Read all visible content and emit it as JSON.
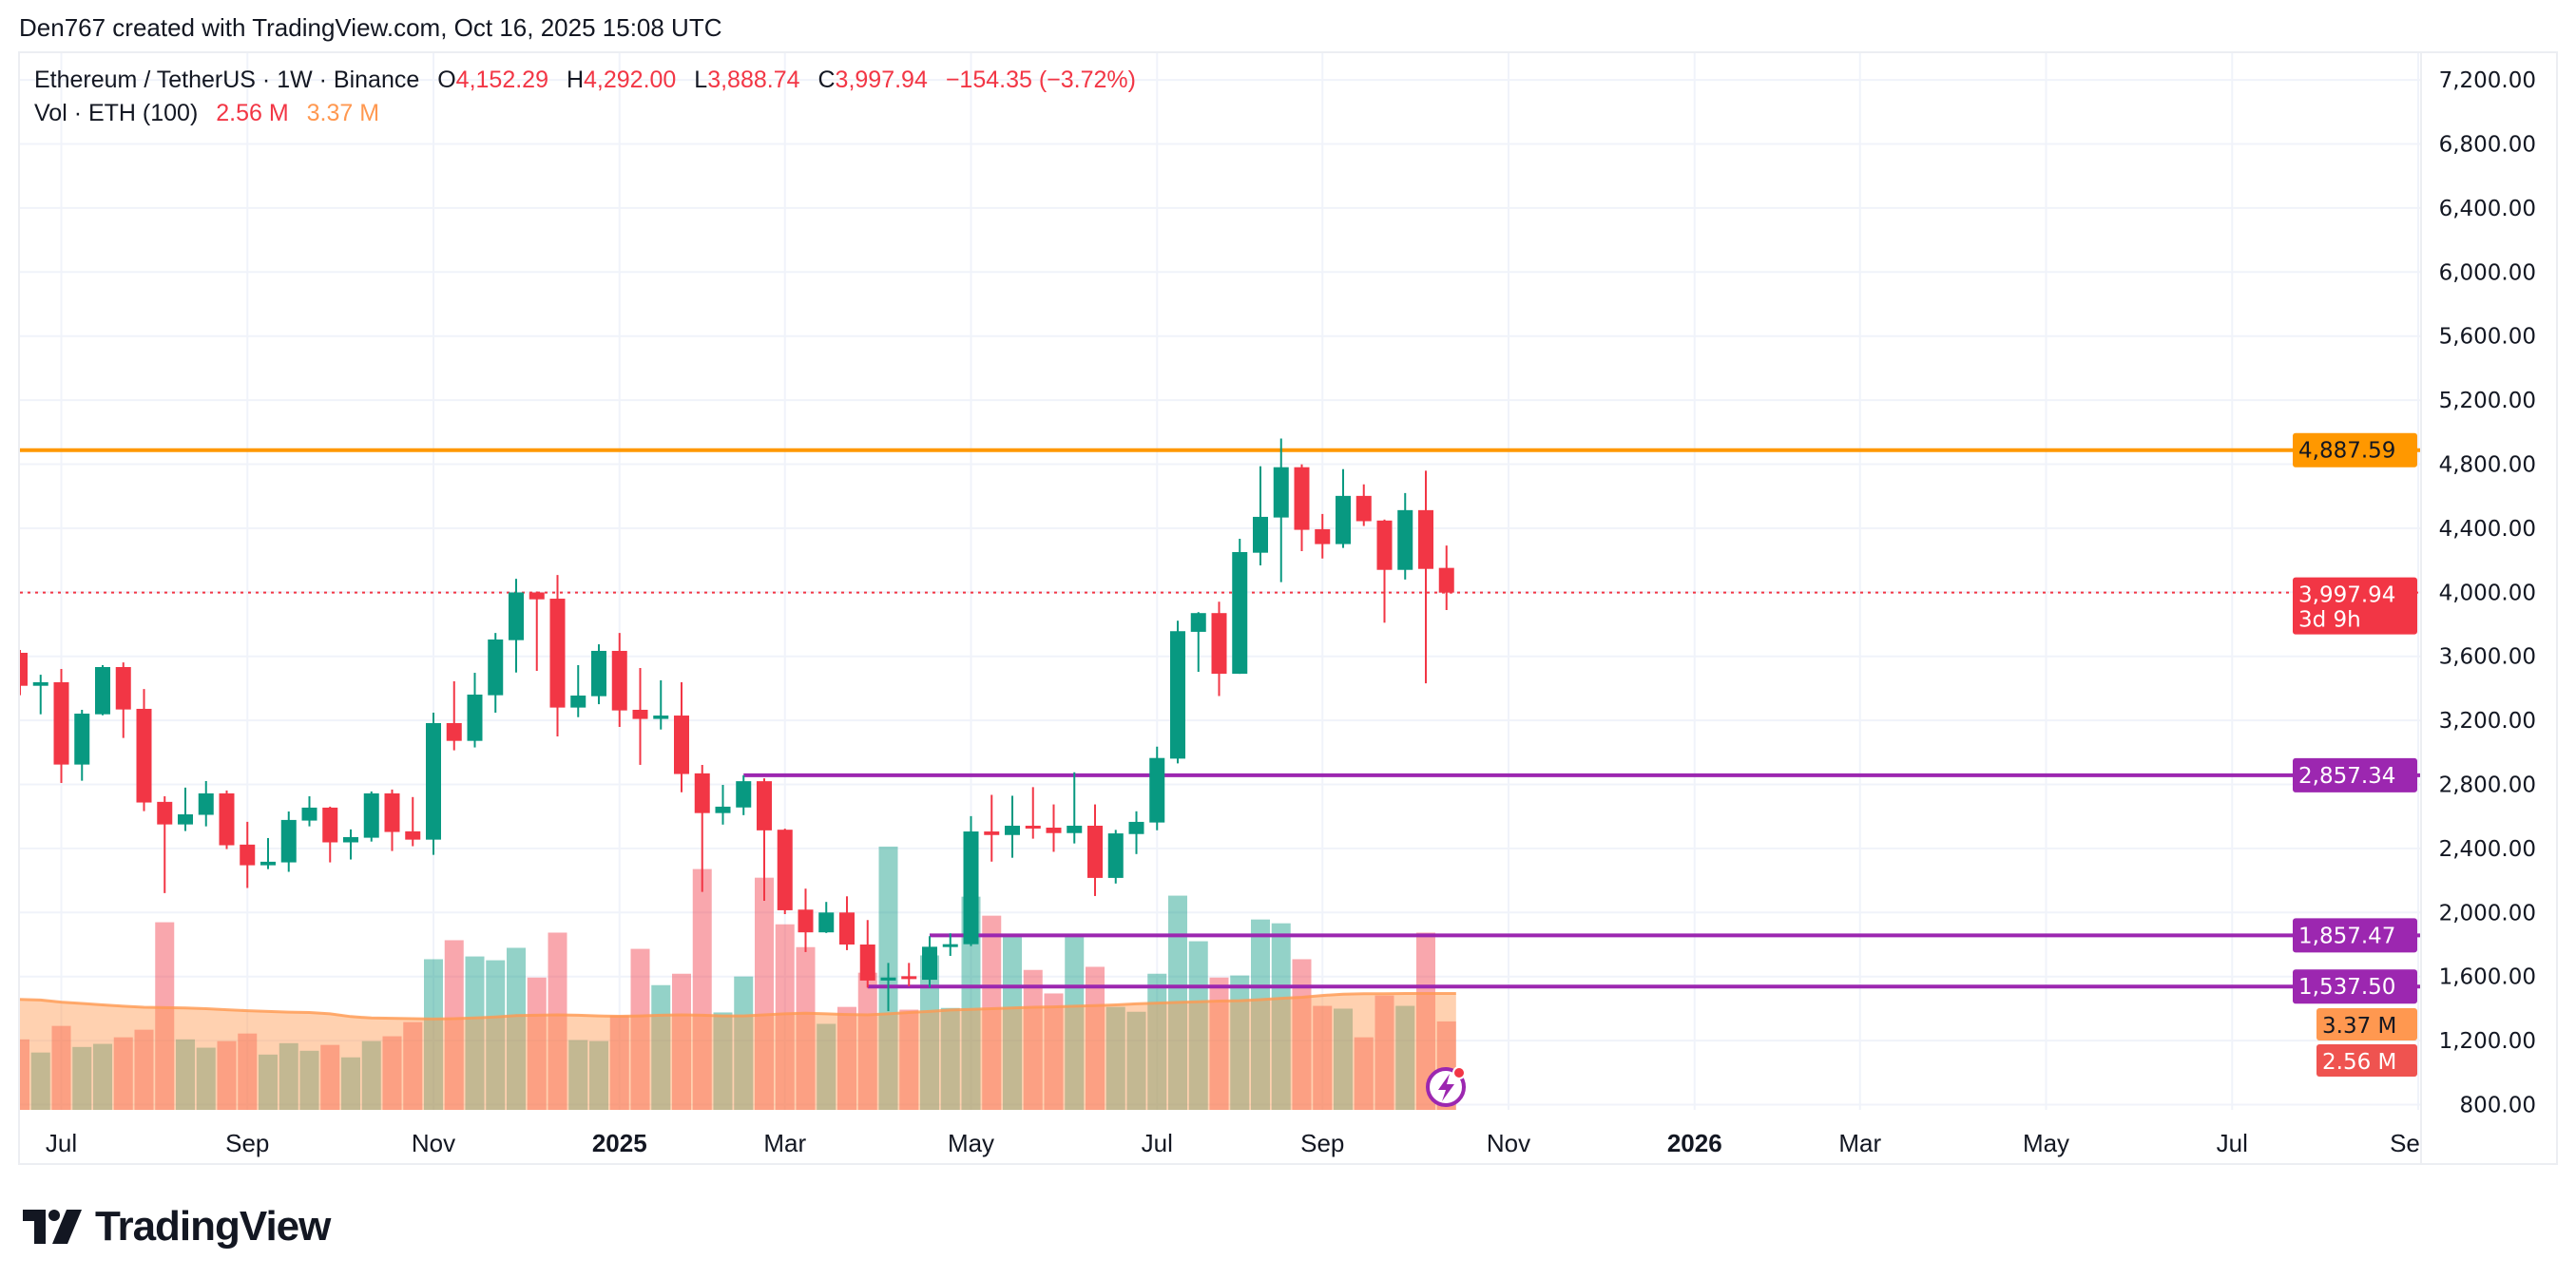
{
  "header": {
    "attribution": "Den767 created with TradingView.com, Oct 16, 2025 15:08 UTC"
  },
  "legend": {
    "symbol": "Ethereum / TetherUS · 1W · Binance",
    "o_label": "O",
    "o": "4,152.29",
    "h_label": "H",
    "h": "4,292.00",
    "l_label": "L",
    "l": "3,888.74",
    "c_label": "C",
    "c": "3,997.94",
    "change": "−154.35 (−3.72%)"
  },
  "volume_legend": {
    "label": "Vol · ETH (100)",
    "volume": "2.56 M",
    "ma": "3.37 M"
  },
  "price_axis": {
    "ticks": [
      "800.00",
      "1,200.00",
      "1,600.00",
      "2,000.00",
      "2,400.00",
      "2,800.00",
      "3,200.00",
      "3,600.00",
      "4,000.00",
      "4,400.00",
      "4,800.00",
      "5,200.00",
      "5,600.00",
      "6,000.00",
      "6,400.00",
      "6,800.00",
      "7,200.00"
    ],
    "last_price": {
      "label": "3,997.94",
      "countdown": "3d 9h",
      "color": "#f23645"
    },
    "levels": [
      {
        "label": "4,887.59",
        "price": 4887.59,
        "color": "#ff9800",
        "text_color": "#131722",
        "start": null
      },
      {
        "label": "2,857.34",
        "price": 2857.34,
        "color": "#9c27b0",
        "text_color": "#ffffff",
        "start": "2025-02-17"
      },
      {
        "label": "1,857.47",
        "price": 1857.47,
        "color": "#9c27b0",
        "text_color": "#ffffff",
        "start": "2025-04-21"
      },
      {
        "label": "1,537.50",
        "price": 1537.5,
        "color": "#9c27b0",
        "text_color": "#ffffff",
        "start": "2025-03-31"
      }
    ],
    "volume_labels": [
      {
        "label": "3.37 M",
        "color": "#ff9850",
        "text_color": "#131722"
      },
      {
        "label": "2.56 M",
        "color": "#ef5350",
        "text_color": "#ffffff"
      }
    ]
  },
  "time_axis": [
    {
      "label": "Jul",
      "date": "2024-07-01",
      "bold": false
    },
    {
      "label": "Sep",
      "date": "2024-09-02",
      "bold": false
    },
    {
      "label": "Nov",
      "date": "2024-11-04",
      "bold": false
    },
    {
      "label": "2025",
      "date": "2025-01-06",
      "bold": true
    },
    {
      "label": "Mar",
      "date": "2025-03-03",
      "bold": false
    },
    {
      "label": "May",
      "date": "2025-05-05",
      "bold": false
    },
    {
      "label": "Jul",
      "date": "2025-07-07",
      "bold": false
    },
    {
      "label": "Sep",
      "date": "2025-09-01",
      "bold": false
    },
    {
      "label": "Nov",
      "date": "2025-11-03",
      "bold": false
    },
    {
      "label": "2026",
      "date": "2026-01-05",
      "bold": true
    },
    {
      "label": "Mar",
      "date": "2026-03-02",
      "bold": false
    },
    {
      "label": "May",
      "date": "2026-05-04",
      "bold": false
    },
    {
      "label": "Jul",
      "date": "2026-07-06",
      "bold": false
    },
    {
      "label": "Se",
      "date": "2026-09-07",
      "bold": false
    }
  ],
  "colors": {
    "up": "#089981",
    "down": "#f23645",
    "volume_ma": "#ff9850",
    "grid": "#f0f3fa",
    "alert_icon": "#9c27b0"
  },
  "icons": {
    "alert": "lightning-alert-icon",
    "logo": "tradingview-logo"
  },
  "logo": {
    "text": "TradingView"
  },
  "chart_data": {
    "type": "candlestick",
    "symbol": "Ethereum / TetherUS",
    "interval": "1W",
    "exchange": "Binance",
    "ylim": [
      800,
      7200
    ],
    "volume_unit": "M",
    "volume_ma_period": 100,
    "columns": [
      "date",
      "open",
      "high",
      "low",
      "close",
      "volume",
      "volume_ma"
    ],
    "candles": [
      [
        "2024-06-17",
        3622,
        3640,
        3357,
        3416,
        2.04,
        3.21
      ],
      [
        "2024-06-24",
        3416,
        3485,
        3238,
        3438,
        1.66,
        3.18
      ],
      [
        "2024-07-01",
        3438,
        3521,
        2809,
        2924,
        2.43,
        3.12
      ],
      [
        "2024-07-08",
        2924,
        3266,
        2823,
        3242,
        1.82,
        3.08
      ],
      [
        "2024-07-15",
        3238,
        3545,
        3232,
        3533,
        1.91,
        3.04
      ],
      [
        "2024-07-22",
        3533,
        3562,
        3090,
        3268,
        2.1,
        3.0
      ],
      [
        "2024-07-29",
        3272,
        3396,
        2633,
        2687,
        2.32,
        2.97
      ],
      [
        "2024-08-05",
        2691,
        2726,
        2121,
        2550,
        5.43,
        2.96
      ],
      [
        "2024-08-12",
        2550,
        2780,
        2509,
        2613,
        2.04,
        2.95
      ],
      [
        "2024-08-19",
        2610,
        2821,
        2538,
        2744,
        1.8,
        2.93
      ],
      [
        "2024-08-26",
        2744,
        2762,
        2396,
        2420,
        1.99,
        2.9
      ],
      [
        "2024-09-02",
        2424,
        2566,
        2153,
        2295,
        2.21,
        2.87
      ],
      [
        "2024-09-09",
        2295,
        2465,
        2271,
        2317,
        1.6,
        2.85
      ],
      [
        "2024-09-16",
        2313,
        2631,
        2254,
        2578,
        1.93,
        2.83
      ],
      [
        "2024-09-23",
        2574,
        2726,
        2538,
        2655,
        1.71,
        2.82
      ],
      [
        "2024-09-30",
        2655,
        2661,
        2313,
        2438,
        1.88,
        2.78
      ],
      [
        "2024-10-07",
        2438,
        2519,
        2331,
        2471,
        1.52,
        2.7
      ],
      [
        "2024-10-14",
        2467,
        2756,
        2443,
        2744,
        1.99,
        2.66
      ],
      [
        "2024-10-21",
        2744,
        2768,
        2384,
        2503,
        2.13,
        2.65
      ],
      [
        "2024-10-28",
        2507,
        2721,
        2414,
        2455,
        2.54,
        2.64
      ],
      [
        "2024-11-04",
        2455,
        3248,
        2360,
        3183,
        4.36,
        2.63
      ],
      [
        "2024-11-11",
        3183,
        3444,
        3013,
        3072,
        4.91,
        2.64
      ],
      [
        "2024-11-18",
        3072,
        3497,
        3031,
        3361,
        4.44,
        2.66
      ],
      [
        "2024-11-25",
        3357,
        3746,
        3248,
        3705,
        4.33,
        2.69
      ],
      [
        "2024-12-02",
        3701,
        4084,
        3499,
        3999,
        4.69,
        2.73
      ],
      [
        "2024-12-09",
        3999,
        4005,
        3509,
        3956,
        3.83,
        2.74
      ],
      [
        "2024-12-16",
        3960,
        4108,
        3100,
        3280,
        5.13,
        2.75
      ],
      [
        "2024-12-23",
        3280,
        3545,
        3220,
        3355,
        2.02,
        2.74
      ],
      [
        "2024-12-30",
        3351,
        3675,
        3301,
        3634,
        1.99,
        2.72
      ],
      [
        "2025-01-06",
        3634,
        3746,
        3159,
        3262,
        2.73,
        2.71
      ],
      [
        "2025-01-13",
        3266,
        3527,
        2922,
        3209,
        4.66,
        2.72
      ],
      [
        "2025-01-20",
        3209,
        3450,
        3143,
        3230,
        3.61,
        2.74
      ],
      [
        "2025-01-27",
        3230,
        3438,
        2751,
        2865,
        3.94,
        2.75
      ],
      [
        "2025-02-03",
        2869,
        2922,
        2129,
        2621,
        6.97,
        2.74
      ],
      [
        "2025-02-10",
        2621,
        2797,
        2549,
        2661,
        2.82,
        2.72
      ],
      [
        "2025-02-17",
        2656,
        2857,
        2608,
        2820,
        3.86,
        2.72
      ],
      [
        "2025-02-24",
        2820,
        2838,
        2073,
        2513,
        6.72,
        2.75
      ],
      [
        "2025-03-03",
        2517,
        2523,
        1990,
        2014,
        5.37,
        2.78
      ],
      [
        "2025-03-10",
        2018,
        2149,
        1753,
        1876,
        4.71,
        2.8
      ],
      [
        "2025-03-17",
        1876,
        2066,
        1872,
        2000,
        2.49,
        2.78
      ],
      [
        "2025-03-24",
        2000,
        2101,
        1765,
        1800,
        2.98,
        2.76
      ],
      [
        "2025-03-31",
        1800,
        1953,
        1531,
        1575,
        3.97,
        2.75
      ],
      [
        "2025-04-07",
        1575,
        1685,
        1384,
        1594,
        7.62,
        2.78
      ],
      [
        "2025-04-14",
        1602,
        1685,
        1539,
        1594,
        2.9,
        2.82
      ],
      [
        "2025-04-21",
        1580,
        1852,
        1531,
        1786,
        4.47,
        2.85
      ],
      [
        "2025-04-28",
        1786,
        1870,
        1729,
        1802,
        2.95,
        2.89
      ],
      [
        "2025-05-05",
        1802,
        2602,
        1790,
        2506,
        6.17,
        2.91
      ],
      [
        "2025-05-12",
        2506,
        2735,
        2318,
        2484,
        5.62,
        2.93
      ],
      [
        "2025-05-19",
        2484,
        2729,
        2342,
        2542,
        5.1,
        2.95
      ],
      [
        "2025-05-26",
        2542,
        2783,
        2461,
        2526,
        4.05,
        2.97
      ],
      [
        "2025-06-02",
        2530,
        2675,
        2379,
        2496,
        3.37,
        2.98
      ],
      [
        "2025-06-09",
        2496,
        2876,
        2431,
        2542,
        5.1,
        3.0
      ],
      [
        "2025-06-16",
        2542,
        2675,
        2103,
        2216,
        4.14,
        3.02
      ],
      [
        "2025-06-23",
        2216,
        2516,
        2181,
        2494,
        2.98,
        3.04
      ],
      [
        "2025-06-30",
        2490,
        2632,
        2365,
        2566,
        2.84,
        3.07
      ],
      [
        "2025-07-07",
        2562,
        3036,
        2514,
        2965,
        3.94,
        3.09
      ],
      [
        "2025-07-14",
        2961,
        3822,
        2931,
        3757,
        6.2,
        3.11
      ],
      [
        "2025-07-21",
        3753,
        3876,
        3503,
        3870,
        4.88,
        3.13
      ],
      [
        "2025-07-28",
        3870,
        3941,
        3352,
        3491,
        3.83,
        3.15
      ],
      [
        "2025-08-04",
        3491,
        4334,
        3491,
        4251,
        3.89,
        3.16
      ],
      [
        "2025-08-11",
        4247,
        4787,
        4168,
        4471,
        5.51,
        3.19
      ],
      [
        "2025-08-18",
        4467,
        4960,
        4063,
        4781,
        5.4,
        3.23
      ],
      [
        "2025-08-25",
        4781,
        4799,
        4257,
        4390,
        4.36,
        3.26
      ],
      [
        "2025-09-01",
        4394,
        4489,
        4211,
        4301,
        3.01,
        3.31
      ],
      [
        "2025-09-08",
        4301,
        4769,
        4277,
        4602,
        2.93,
        3.35
      ],
      [
        "2025-09-15",
        4602,
        4674,
        4414,
        4444,
        2.1,
        3.36
      ],
      [
        "2025-09-22",
        4448,
        4454,
        3810,
        4140,
        3.31,
        3.36
      ],
      [
        "2025-09-29",
        4140,
        4620,
        4080,
        4513,
        3.01,
        3.37
      ],
      [
        "2025-10-06",
        4513,
        4759,
        3431,
        4146,
        5.13,
        3.37
      ],
      [
        "2025-10-13",
        4152.29,
        4292.0,
        3888.74,
        3997.94,
        2.56,
        3.37
      ]
    ]
  }
}
